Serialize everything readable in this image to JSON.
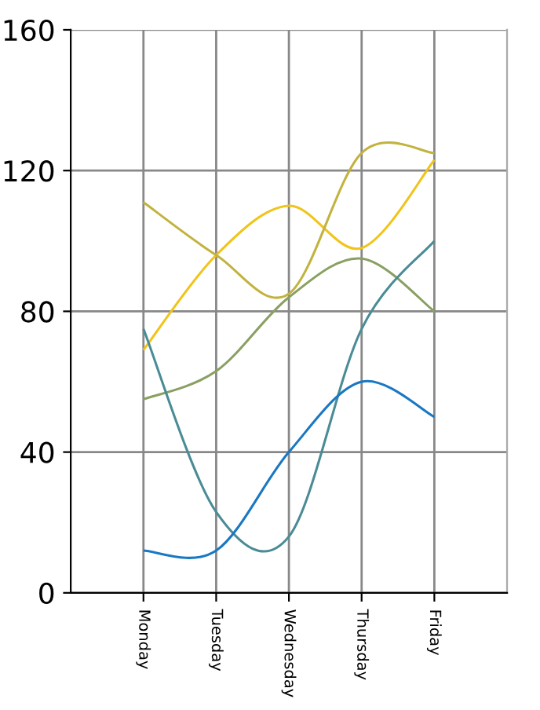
{
  "chart_data": {
    "type": "line",
    "categories": [
      "Monday",
      "Tuesday",
      "Wednesday",
      "Thursday",
      "Friday"
    ],
    "series": [
      {
        "color": "#f0c419",
        "values": [
          69,
          96,
          110,
          98,
          123
        ]
      },
      {
        "color": "#c2b33f",
        "values": [
          111,
          96,
          85,
          125,
          125
        ]
      },
      {
        "color": "#8aa062",
        "values": [
          55,
          63,
          84,
          95,
          80
        ]
      },
      {
        "color": "#4a8c96",
        "values": [
          75,
          23,
          16,
          75,
          100
        ]
      },
      {
        "color": "#1a78c2",
        "values": [
          12,
          12,
          40,
          60,
          50
        ]
      }
    ],
    "ylim": [
      0,
      160
    ],
    "yticks": [
      0,
      40,
      80,
      120,
      160
    ],
    "grid": true,
    "marker": "none",
    "line_style": "solid"
  }
}
